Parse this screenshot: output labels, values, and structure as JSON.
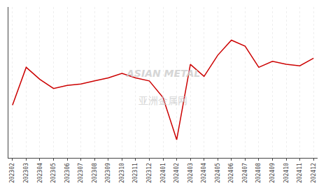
{
  "chart_data": {
    "type": "line",
    "categories": [
      "202302",
      "202303",
      "202304",
      "202305",
      "202306",
      "202307",
      "202308",
      "202309",
      "202310",
      "202311",
      "202312",
      "202401",
      "202402",
      "202403",
      "202404",
      "202405",
      "202406",
      "202407",
      "202408",
      "202409",
      "202410",
      "202411",
      "202412"
    ],
    "values": [
      35,
      60,
      52,
      46,
      48,
      49,
      51,
      53,
      56,
      53,
      51,
      40,
      12,
      62,
      54,
      68,
      78,
      74,
      60,
      64,
      62,
      61,
      66
    ],
    "color": "#cc0000",
    "ylim": [
      0,
      100
    ],
    "yticks": [],
    "grid": true,
    "tick_labels": "x",
    "annotations": [
      "ASIAN METAL",
      "亚洲金属网"
    ]
  }
}
